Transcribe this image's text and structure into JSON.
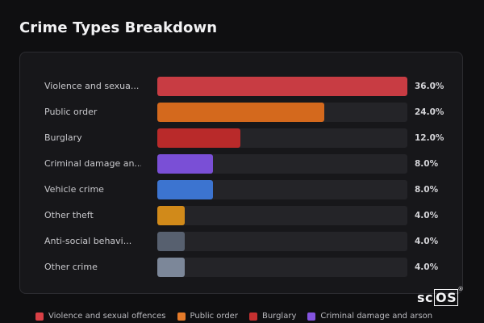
{
  "title": "Crime Types Breakdown",
  "logo": {
    "text": "sc",
    "boxed": "OS",
    "mark": "®"
  },
  "chart_data": {
    "type": "bar",
    "orientation": "horizontal",
    "title": "Crime Types Breakdown",
    "categories": [
      "Violence and sexua...",
      "Public order",
      "Burglary",
      "Criminal damage an...",
      "Vehicle crime",
      "Other theft",
      "Anti-social behavi...",
      "Other crime"
    ],
    "values": [
      36.0,
      24.0,
      12.0,
      8.0,
      8.0,
      4.0,
      4.0,
      4.0
    ],
    "value_labels": [
      "36.0%",
      "24.0%",
      "12.0%",
      "8.0%",
      "8.0%",
      "4.0%",
      "4.0%",
      "4.0%"
    ],
    "colors": [
      "#c83c43",
      "#d4691d",
      "#b92a2a",
      "#7a4fd6",
      "#3c74d0",
      "#d18a1a",
      "#57606f",
      "#7c8799"
    ],
    "xlim": [
      0,
      36
    ],
    "legend_position": "bottom"
  },
  "legend": [
    {
      "label": "Violence and sexual offences",
      "color": "#d94046"
    },
    {
      "label": "Public order",
      "color": "#e57b2a"
    },
    {
      "label": "Burglary",
      "color": "#c53030"
    },
    {
      "label": "Criminal damage and arson",
      "color": "#8454e0"
    }
  ]
}
